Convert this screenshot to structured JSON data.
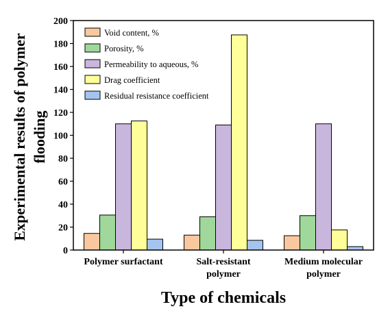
{
  "chart_data": {
    "type": "bar",
    "categories": [
      [
        "Polymer surfactant"
      ],
      [
        "Salt-resistant",
        "polymer"
      ],
      [
        "Medium molecular",
        "polymer"
      ]
    ],
    "series": [
      {
        "name": "Void content, %",
        "color": "#f9c89e",
        "values": [
          14.5,
          13,
          12.5
        ]
      },
      {
        "name": "Porosity, %",
        "color": "#9fd89a",
        "values": [
          30.5,
          29,
          30
        ]
      },
      {
        "name": "Permeability to aqueous, %",
        "color": "#c9b6dd",
        "values": [
          110,
          109,
          110
        ]
      },
      {
        "name": "Drag coefficient",
        "color": "#ffff99",
        "values": [
          112.5,
          187.5,
          17.5
        ]
      },
      {
        "name": "Residual resistance coefficient",
        "color": "#a4c4ef",
        "values": [
          9.5,
          8.5,
          3
        ]
      }
    ],
    "ylabel_lines": [
      "Experimental results of polymer",
      "flooding"
    ],
    "xlabel": "Type of chemicals",
    "ylim": [
      0,
      200
    ],
    "yticks": [
      0,
      20,
      40,
      60,
      80,
      100,
      120,
      140,
      160,
      180,
      200
    ],
    "grid": false,
    "legend_position": "top-left"
  }
}
